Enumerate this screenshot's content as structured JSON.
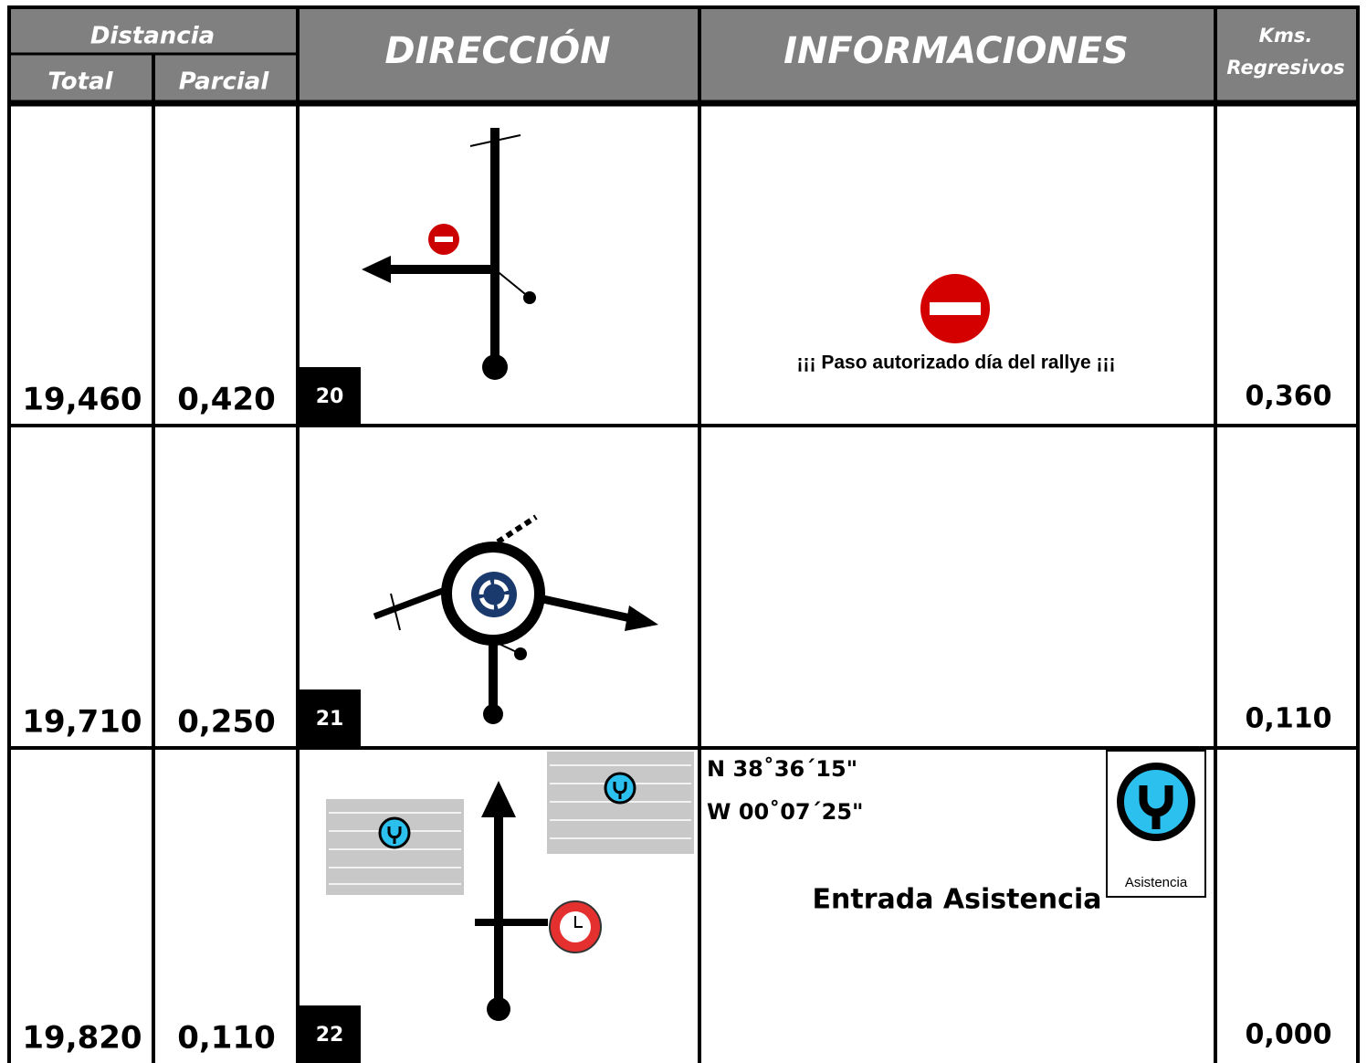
{
  "header": {
    "distancia": "Distancia",
    "total": "Total",
    "parcial": "Parcial",
    "direccion": "DIRECCIÓN",
    "informaciones": "INFORMACIONES",
    "kms": [
      "Kms.",
      "Regresivos"
    ]
  },
  "rows": [
    {
      "total": "19,460",
      "parcial": "0,420",
      "number": "20",
      "info": "¡¡¡ Paso autorizado día del rallye ¡¡¡",
      "kms": "0,360"
    },
    {
      "total": "19,710",
      "parcial": "0,250",
      "number": "21",
      "kms": "0,110"
    },
    {
      "total": "19,820",
      "parcial": "0,110",
      "number": "22",
      "coords": [
        "N 38˚36´15\"",
        "W 00˚07´25\""
      ],
      "info": "Entrada Asistencia",
      "sign": "Asistencia",
      "kms": "0,000"
    }
  ]
}
